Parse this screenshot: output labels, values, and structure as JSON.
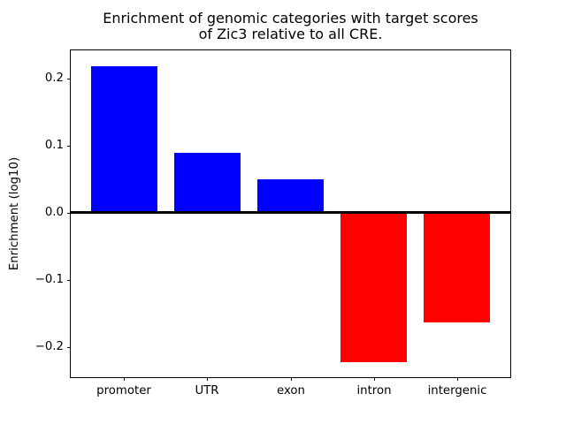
{
  "chart_data": {
    "type": "bar",
    "title": "Enrichment of genomic categories with target scores\nof Zic3 relative to all CRE.",
    "title_lines": [
      "Enrichment of genomic categories with target scores",
      "of Zic3 relative to all CRE."
    ],
    "xlabel": "",
    "ylabel": "Enrichment (log10)",
    "categories": [
      "promoter",
      "UTR",
      "exon",
      "intron",
      "intergenic"
    ],
    "values": [
      0.219,
      0.09,
      0.05,
      -0.222,
      -0.163
    ],
    "bar_colors": [
      "#0000ff",
      "#0000ff",
      "#0000ff",
      "#ff0000",
      "#ff0000"
    ],
    "positive_color": "#0000ff",
    "negative_color": "#ff0000",
    "bar_width_fraction": 0.8,
    "yticks": [
      0.2,
      0.1,
      0.0,
      -0.1,
      -0.2
    ],
    "ytick_labels": [
      "0.2",
      "0.1",
      "0.0",
      "−0.1",
      "−0.2"
    ],
    "ylim": [
      -0.245,
      0.242
    ],
    "grid": false,
    "zero_line": true,
    "legend_position": "none",
    "axis_color": "#000000",
    "text_color": "#000000",
    "background_color": "#ffffff"
  }
}
